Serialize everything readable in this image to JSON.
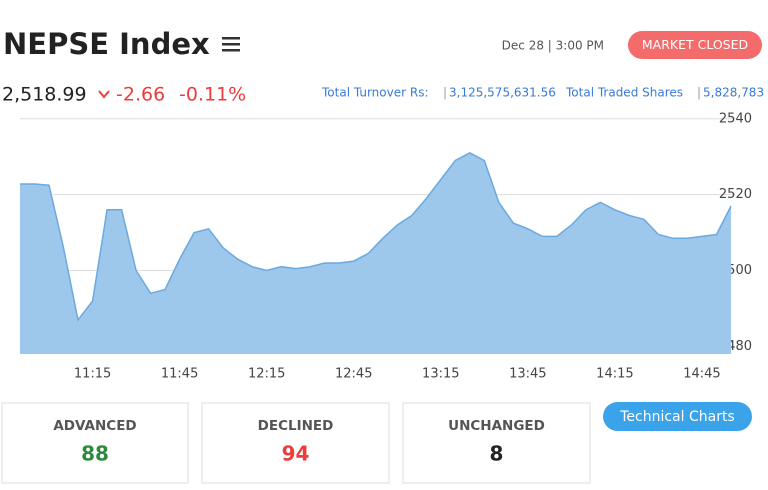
{
  "header": {
    "title": "NEPSE Index",
    "date": "Dec 28 | 3:00 PM",
    "status": "MARKET CLOSED"
  },
  "quote": {
    "value": "2,518.99",
    "change": "-2.66",
    "percent": "-0.11%"
  },
  "turnover": {
    "label": "Total Turnover Rs:",
    "value": "3,125,575,631.56"
  },
  "shares": {
    "label": "Total Traded Shares",
    "value": "5,828,783"
  },
  "chart_data": {
    "type": "area",
    "color": "#9ec7ec",
    "line_color": "#6aaae0",
    "x": [
      null,
      null,
      null,
      null,
      null,
      "11:15",
      null,
      null,
      null,
      null,
      null,
      "11:45",
      null,
      null,
      null,
      null,
      null,
      "12:15",
      null,
      null,
      null,
      null,
      null,
      "12:45",
      null,
      null,
      null,
      null,
      null,
      "13:15",
      null,
      null,
      null,
      null,
      null,
      "13:45",
      null,
      null,
      null,
      null,
      null,
      "14:15",
      null,
      null,
      null,
      null,
      null,
      "14:45",
      null,
      null
    ],
    "values": [
      2522.8,
      2522.8,
      2522.5,
      2506,
      2487,
      2492,
      2516,
      2516,
      2500,
      2494,
      2495,
      2503,
      2510,
      2511,
      2506,
      2503,
      2501,
      2500,
      2501,
      2500.5,
      2501,
      2502,
      2502,
      2502.5,
      2504.5,
      2508.5,
      2512,
      2514.5,
      2519,
      2524,
      2529,
      2531,
      2529,
      2518,
      2512.5,
      2511,
      2509,
      2509,
      2512,
      2516,
      2518,
      2516,
      2514.5,
      2513.5,
      2509.5,
      2508.5,
      2508.5,
      2509,
      2509.5,
      2517
    ],
    "ylim": [
      2478,
      2541
    ],
    "yticks": [
      2480,
      2500,
      2520,
      2540
    ],
    "grid": true
  },
  "stats": [
    {
      "label": "ADVANCED",
      "value": 88,
      "color": "#2e8b3e"
    },
    {
      "label": "DECLINED",
      "value": 94,
      "color": "#ee3b3b"
    },
    {
      "label": "UNCHANGED",
      "value": 8,
      "color": "#222222"
    }
  ],
  "button": "Technical Charts"
}
